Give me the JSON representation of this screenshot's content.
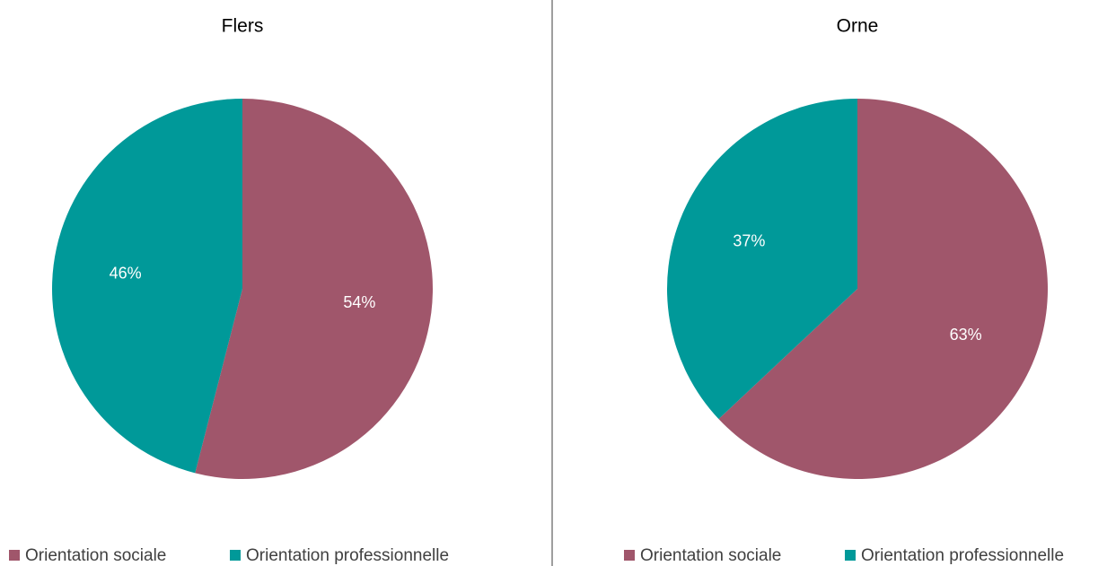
{
  "chart_data": [
    {
      "type": "pie",
      "title": "Flers",
      "categories": [
        "Orientation sociale",
        "Orientation professionnelle"
      ],
      "values": [
        54,
        46
      ],
      "value_labels": [
        "54%",
        "46%"
      ],
      "colors": [
        "#a0566b",
        "#009999"
      ]
    },
    {
      "type": "pie",
      "title": "Orne",
      "categories": [
        "Orientation sociale",
        "Orientation professionnelle"
      ],
      "values": [
        63,
        37
      ],
      "value_labels": [
        "63%",
        "37%"
      ],
      "colors": [
        "#a0566b",
        "#009999"
      ]
    }
  ]
}
